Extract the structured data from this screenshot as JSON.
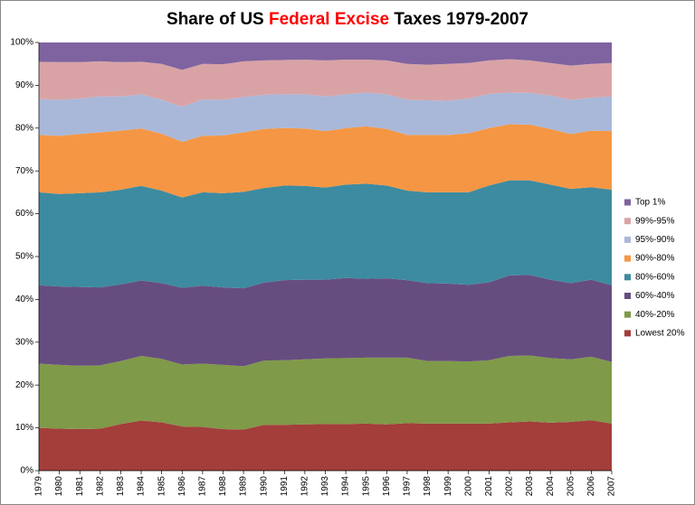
{
  "chart_data": {
    "type": "stacked_area_100",
    "title": [
      "Share of US",
      "Federal Excise",
      "Taxes  1979-2007"
    ],
    "title_highlight_color": "#ff0000",
    "categories": [
      "1979",
      "1980",
      "1981",
      "1982",
      "1983",
      "1984",
      "1985",
      "1986",
      "1987",
      "1988",
      "1989",
      "1990",
      "1991",
      "1992",
      "1993",
      "1994",
      "1995",
      "1996",
      "1997",
      "1998",
      "1999",
      "2000",
      "2001",
      "2002",
      "2003",
      "2004",
      "2005",
      "2006",
      "2007"
    ],
    "ylim": [
      0,
      100
    ],
    "yticks": [
      {
        "value": 0,
        "label": "0%"
      },
      {
        "value": 10,
        "label": "10%"
      },
      {
        "value": 20,
        "label": "20%"
      },
      {
        "value": 30,
        "label": "30%"
      },
      {
        "value": 40,
        "label": "40%"
      },
      {
        "value": 50,
        "label": "50%"
      },
      {
        "value": 60,
        "label": "60%"
      },
      {
        "value": 70,
        "label": "70%"
      },
      {
        "value": 80,
        "label": "80%"
      },
      {
        "value": 90,
        "label": "90%"
      },
      {
        "value": 100,
        "label": "100%"
      }
    ],
    "legend": "right",
    "series": [
      {
        "name": "Lowest 20%",
        "color": "#a33e3b",
        "values": [
          10,
          9.8,
          9.7,
          9.8,
          10.9,
          11.7,
          11.3,
          10.3,
          10.2,
          9.7,
          9.6,
          10.7,
          10.7,
          10.8,
          10.9,
          10.9,
          11,
          10.8,
          11.1,
          11,
          11,
          11,
          11,
          11.3,
          11.5,
          11.2,
          11.4,
          11.8,
          11
        ]
      },
      {
        "name": "40%-20%",
        "color": "#7f9a48",
        "values": [
          15,
          14.9,
          14.8,
          14.8,
          14.7,
          15.1,
          14.8,
          14.5,
          14.8,
          15,
          14.8,
          15,
          15.1,
          15.2,
          15.3,
          15.4,
          15.4,
          15.6,
          15.3,
          14.6,
          14.6,
          14.5,
          14.8,
          15.5,
          15.4,
          15.1,
          14.6,
          14.8,
          14.4
        ]
      },
      {
        "name": "60%-40%",
        "color": "#664d80",
        "values": [
          18.3,
          18.3,
          18.4,
          18.2,
          17.9,
          17.6,
          17.7,
          17.9,
          18.2,
          18.1,
          18.2,
          18.2,
          18.7,
          18.6,
          18.4,
          18.7,
          18.4,
          18.5,
          18.1,
          18.2,
          18.1,
          17.9,
          18.2,
          18.8,
          18.8,
          18.3,
          17.8,
          18,
          17.9
        ]
      },
      {
        "name": "80%-60%",
        "color": "#3d8ba0",
        "values": [
          21.7,
          21.6,
          21.9,
          22.2,
          22.1,
          22.1,
          21.6,
          21.1,
          21.8,
          22,
          22.5,
          22.1,
          22.1,
          21.9,
          21.5,
          21.8,
          22.2,
          21.7,
          20.9,
          21.2,
          21.3,
          21.6,
          22.6,
          22.2,
          22.1,
          22.2,
          22,
          21.6,
          22.3
        ]
      },
      {
        "name": "90%-80%",
        "color": "#f59644",
        "values": [
          13.4,
          13.6,
          13.8,
          14,
          13.8,
          13.4,
          13.3,
          13,
          13.2,
          13.5,
          13.9,
          13.8,
          13.4,
          13.4,
          13.2,
          13.2,
          13.4,
          13.2,
          13,
          13.4,
          13.4,
          13.8,
          13.4,
          13.1,
          13,
          13,
          12.8,
          13.2,
          13.7
        ]
      },
      {
        "name": "95%-90%",
        "color": "#a9b8d9",
        "values": [
          8.4,
          8.4,
          8.3,
          8.4,
          8,
          8,
          7.9,
          8.2,
          8.5,
          8.3,
          8.3,
          8,
          7.9,
          8,
          8.1,
          7.9,
          7.9,
          8.1,
          8.2,
          8.1,
          8,
          8.1,
          8,
          7.4,
          7.4,
          7.8,
          8,
          7.7,
          8.1
        ]
      },
      {
        "name": "99%-95%",
        "color": "#d9a3a6",
        "values": [
          8.7,
          8.8,
          8.5,
          8.2,
          8,
          7.6,
          8.4,
          8.6,
          8.3,
          8.3,
          8.3,
          8,
          8,
          8.1,
          8.4,
          8.1,
          7.7,
          7.9,
          8.4,
          8.3,
          8.6,
          8.3,
          7.8,
          7.8,
          7.6,
          7.6,
          8,
          7.9,
          7.8
        ]
      },
      {
        "name": "Top 1%",
        "color": "#7e63a0",
        "values": [
          4.5,
          4.6,
          4.6,
          4.4,
          4.6,
          4.5,
          5,
          6.4,
          5,
          5.1,
          4.4,
          4.2,
          4.1,
          4,
          4.2,
          4,
          4,
          4.2,
          5,
          5.2,
          5,
          4.8,
          4.2,
          3.9,
          4.2,
          4.8,
          5.4,
          5,
          4.8
        ]
      }
    ]
  }
}
